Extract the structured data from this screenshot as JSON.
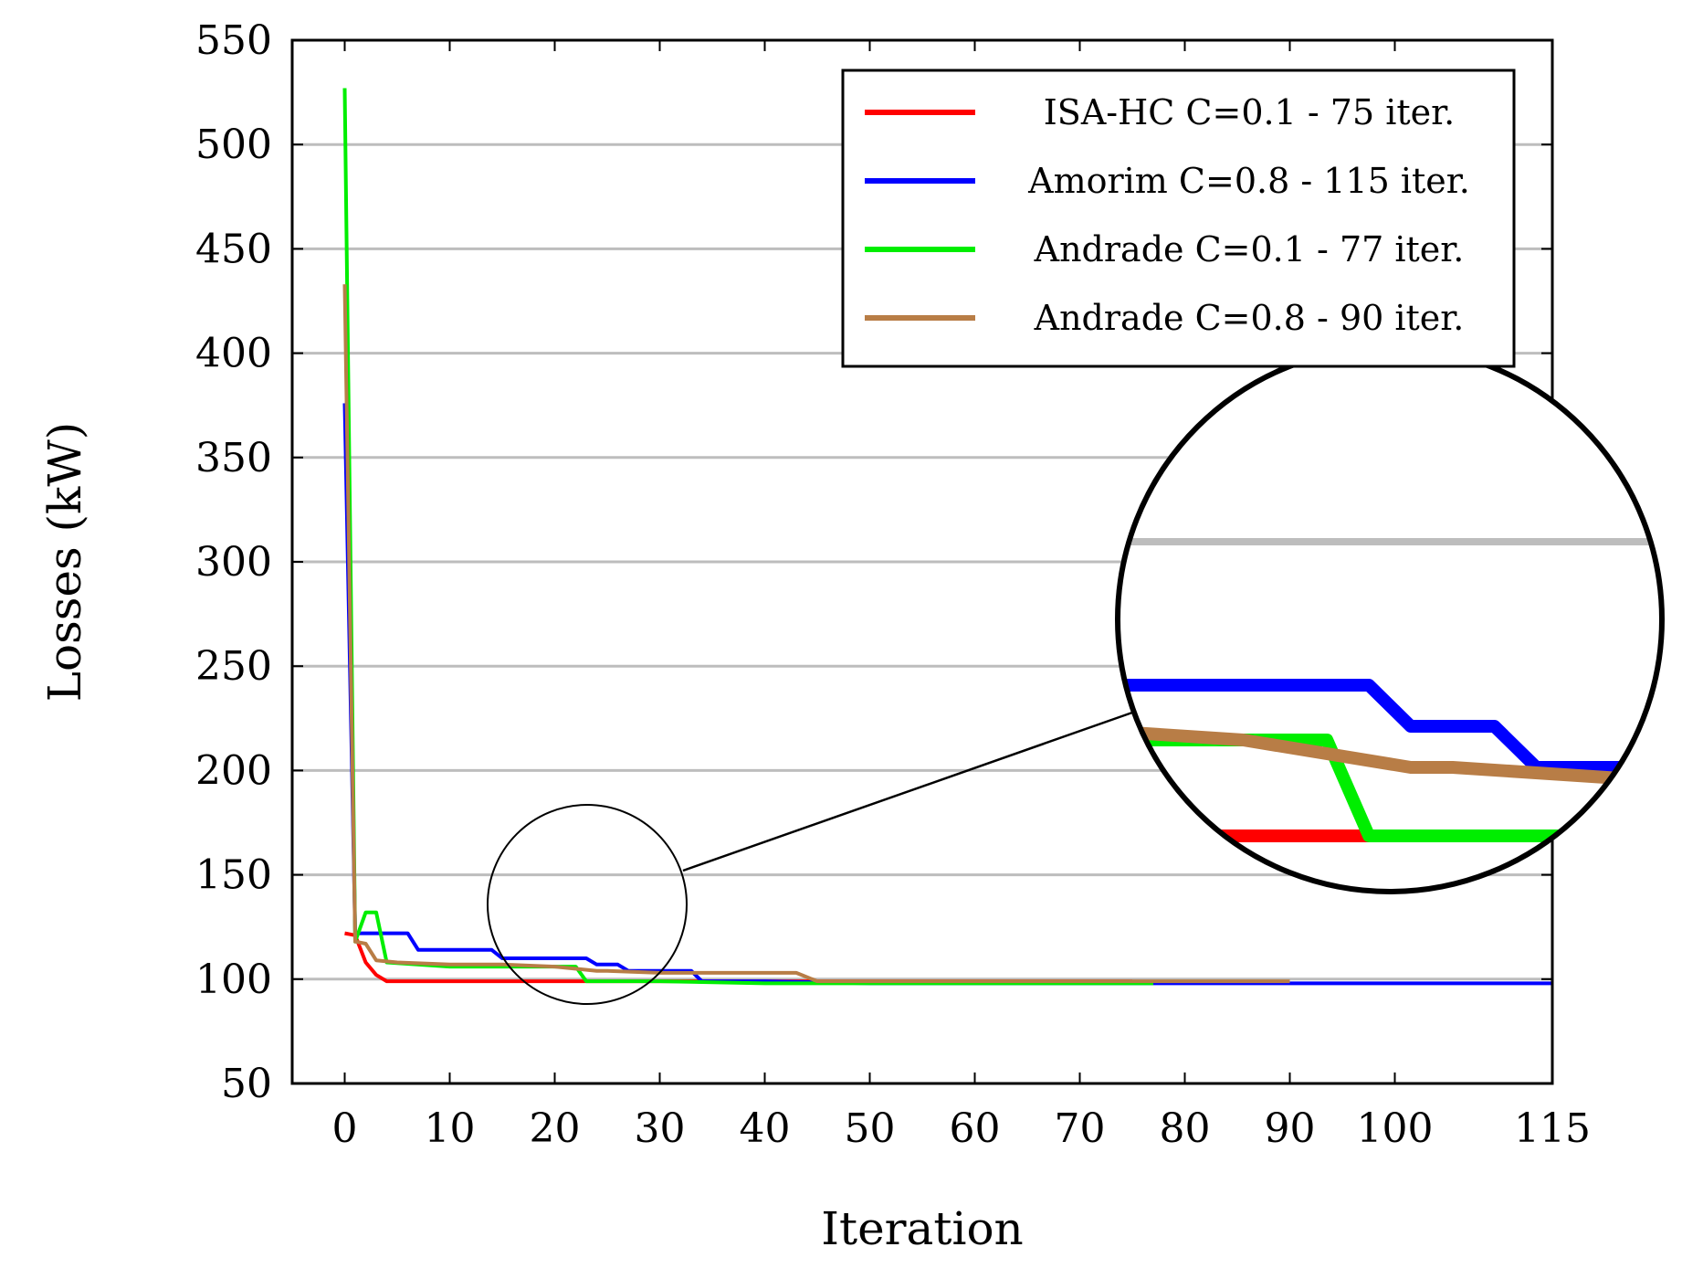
{
  "chart_data": {
    "type": "line",
    "title": "",
    "xlabel": "Iteration",
    "ylabel": "Losses (kW)",
    "xlim": [
      -5,
      115
    ],
    "ylim": [
      50,
      550
    ],
    "xticks": [
      0,
      10,
      20,
      30,
      40,
      50,
      60,
      70,
      80,
      90,
      100,
      115
    ],
    "yticks": [
      50,
      100,
      150,
      200,
      250,
      300,
      350,
      400,
      450,
      500,
      550
    ],
    "grid": "horizontal",
    "legend_position": "top-right",
    "series": [
      {
        "name": "ISA-HC C=0.1 - 75 iter.",
        "color": "#ff0000",
        "x": [
          0,
          1,
          2,
          3,
          4,
          6,
          10,
          20,
          30,
          40,
          50,
          75
        ],
        "y": [
          122,
          121,
          108,
          102,
          99,
          99,
          99,
          99,
          99,
          99,
          99,
          99
        ]
      },
      {
        "name": "Amorim C=0.8 - 115 iter.",
        "color": "#0000ff",
        "x": [
          0,
          1,
          2,
          6,
          7,
          14,
          15,
          22,
          23,
          24,
          26,
          27,
          33,
          34,
          40,
          50,
          80,
          90,
          100,
          115
        ],
        "y": [
          376,
          122,
          122,
          122,
          114,
          114,
          110,
          110,
          110,
          107,
          107,
          104,
          104,
          99,
          99,
          98,
          98,
          98,
          98,
          98
        ]
      },
      {
        "name": "Andrade C=0.1 - 77 iter.",
        "color": "#00ee00",
        "x": [
          0,
          1,
          2,
          3,
          4,
          10,
          20,
          22,
          23,
          30,
          40,
          46,
          77
        ],
        "y": [
          527,
          118,
          132,
          132,
          108,
          106,
          106,
          106,
          99,
          99,
          98,
          98,
          98
        ]
      },
      {
        "name": "Andrade C=0.8 - 90 iter.",
        "color": "#b87d46",
        "x": [
          0,
          1,
          2,
          3,
          5,
          10,
          15,
          20,
          24,
          25,
          30,
          35,
          43,
          45,
          50,
          70,
          90
        ],
        "y": [
          433,
          118,
          117,
          109,
          108,
          107,
          107,
          106,
          104,
          104,
          103,
          103,
          103,
          99,
          99,
          99,
          99
        ]
      }
    ],
    "annotations": [
      {
        "type": "zoom-circle",
        "target_x": 23,
        "target_y": 119,
        "inset": "magnified view of the curves near iterations 17-30"
      }
    ]
  }
}
